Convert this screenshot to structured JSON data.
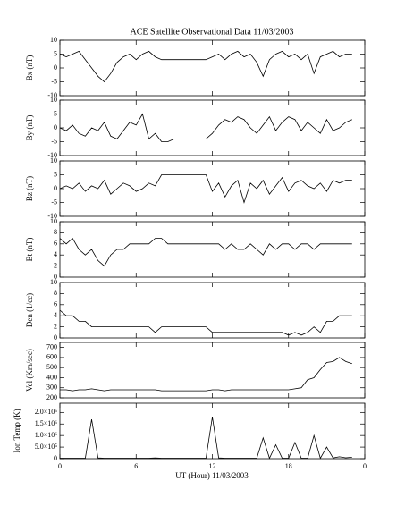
{
  "chart_data": [
    {
      "type": "line",
      "title": "ACE Satellite Observational Data   11/03/2003",
      "y_label": "Bx (nT)",
      "color": "#000000",
      "xlim": [
        0,
        24
      ],
      "ylim": [
        -10,
        10
      ],
      "yticks": [
        -10,
        -5,
        0,
        5,
        10
      ],
      "x": [
        0,
        0.5,
        1,
        1.5,
        2,
        2.5,
        3,
        3.5,
        4,
        4.5,
        5,
        5.5,
        6,
        6.5,
        7,
        7.5,
        8,
        8.5,
        9,
        9.5,
        10,
        10.5,
        11,
        11.5,
        12,
        12.5,
        13,
        13.5,
        14,
        14.5,
        15,
        15.5,
        16,
        16.5,
        17,
        17.5,
        18,
        18.5,
        19,
        19.5,
        20,
        20.5,
        21,
        21.5,
        22,
        22.5,
        23
      ],
      "values": [
        5,
        4,
        5,
        6,
        3,
        0,
        -3,
        -5,
        -2,
        2,
        4,
        5,
        3,
        5,
        6,
        4,
        3,
        3,
        3,
        3,
        3,
        3,
        3,
        3,
        4,
        5,
        3,
        5,
        6,
        4,
        5,
        2,
        -3,
        3,
        5,
        6,
        4,
        5,
        3,
        5,
        -2,
        4,
        5,
        6,
        4,
        5,
        5
      ]
    },
    {
      "type": "line",
      "y_label": "By (nT)",
      "color": "#000000",
      "xlim": [
        0,
        24
      ],
      "ylim": [
        -10,
        10
      ],
      "yticks": [
        -10,
        -5,
        0,
        5,
        10
      ],
      "x": [
        0,
        0.5,
        1,
        1.5,
        2,
        2.5,
        3,
        3.5,
        4,
        4.5,
        5,
        5.5,
        6,
        6.5,
        7,
        7.5,
        8,
        8.5,
        9,
        9.5,
        10,
        10.5,
        11,
        11.5,
        12,
        12.5,
        13,
        13.5,
        14,
        14.5,
        15,
        15.5,
        16,
        16.5,
        17,
        17.5,
        18,
        18.5,
        19,
        19.5,
        20,
        20.5,
        21,
        21.5,
        22,
        22.5,
        23
      ],
      "values": [
        0,
        -1,
        1,
        -2,
        -3,
        0,
        -1,
        2,
        -3,
        -4,
        -1,
        2,
        1,
        5,
        -4,
        -2,
        -5,
        -5,
        -4,
        -4,
        -4,
        -4,
        -4,
        -4,
        -2,
        1,
        3,
        2,
        4,
        3,
        0,
        -2,
        1,
        4,
        -1,
        2,
        4,
        3,
        -1,
        2,
        0,
        -2,
        3,
        -1,
        0,
        2,
        3
      ]
    },
    {
      "type": "line",
      "y_label": "Bz (nT)",
      "color": "#000000",
      "xlim": [
        0,
        24
      ],
      "ylim": [
        -10,
        10
      ],
      "yticks": [
        -10,
        -5,
        0,
        5,
        10
      ],
      "x": [
        0,
        0.5,
        1,
        1.5,
        2,
        2.5,
        3,
        3.5,
        4,
        4.5,
        5,
        5.5,
        6,
        6.5,
        7,
        7.5,
        8,
        8.5,
        9,
        9.5,
        10,
        10.5,
        11,
        11.5,
        12,
        12.5,
        13,
        13.5,
        14,
        14.5,
        15,
        15.5,
        16,
        16.5,
        17,
        17.5,
        18,
        18.5,
        19,
        19.5,
        20,
        20.5,
        21,
        21.5,
        22,
        22.5,
        23
      ],
      "values": [
        0,
        1,
        0,
        2,
        -1,
        1,
        0,
        3,
        -2,
        0,
        2,
        1,
        -1,
        0,
        2,
        1,
        5,
        5,
        5,
        5,
        5,
        5,
        5,
        5,
        -1,
        2,
        -3,
        1,
        3,
        -5,
        2,
        0,
        3,
        -2,
        1,
        4,
        -1,
        2,
        3,
        1,
        0,
        2,
        -1,
        3,
        2,
        3,
        3
      ]
    },
    {
      "type": "line",
      "y_label": "Bt (nT)",
      "color": "#000000",
      "xlim": [
        0,
        24
      ],
      "ylim": [
        0,
        10
      ],
      "yticks": [
        0,
        2,
        4,
        6,
        8,
        10
      ],
      "x": [
        0,
        0.5,
        1,
        1.5,
        2,
        2.5,
        3,
        3.5,
        4,
        4.5,
        5,
        5.5,
        6,
        6.5,
        7,
        7.5,
        8,
        8.5,
        9,
        9.5,
        10,
        10.5,
        11,
        11.5,
        12,
        12.5,
        13,
        13.5,
        14,
        14.5,
        15,
        15.5,
        16,
        16.5,
        17,
        17.5,
        18,
        18.5,
        19,
        19.5,
        20,
        20.5,
        21,
        21.5,
        22,
        22.5,
        23
      ],
      "values": [
        7,
        6,
        7,
        5,
        4,
        5,
        3,
        2,
        4,
        5,
        5,
        6,
        6,
        6,
        6,
        7,
        7,
        6,
        6,
        6,
        6,
        6,
        6,
        6,
        6,
        6,
        5,
        6,
        5,
        5,
        6,
        5,
        4,
        6,
        5,
        6,
        6,
        5,
        6,
        6,
        5,
        6,
        6,
        6,
        6,
        6,
        6
      ]
    },
    {
      "type": "line",
      "y_label": "Den (1/cc)",
      "color": "#000000",
      "xlim": [
        0,
        24
      ],
      "ylim": [
        0,
        10
      ],
      "yticks": [
        0,
        2,
        4,
        6,
        8,
        10
      ],
      "x": [
        0,
        0.5,
        1,
        1.5,
        2,
        2.5,
        3,
        3.5,
        4,
        4.5,
        5,
        5.5,
        6,
        6.5,
        7,
        7.5,
        8,
        8.5,
        9,
        9.5,
        10,
        10.5,
        11,
        11.5,
        12,
        12.5,
        13,
        13.5,
        14,
        14.5,
        15,
        15.5,
        16,
        16.5,
        17,
        17.5,
        18,
        18.5,
        19,
        19.5,
        20,
        20.5,
        21,
        21.5,
        22,
        22.5,
        23
      ],
      "values": [
        5,
        4,
        4,
        3,
        3,
        2,
        2,
        2,
        2,
        2,
        2,
        2,
        2,
        2,
        2,
        1,
        2,
        2,
        2,
        2,
        2,
        2,
        2,
        2,
        1,
        1,
        1,
        1,
        1,
        1,
        1,
        1,
        1,
        1,
        1,
        1,
        0.5,
        1,
        0.5,
        1,
        2,
        1,
        3,
        3,
        4,
        4,
        4
      ]
    },
    {
      "type": "line",
      "y_label": "Vel (Km/sec)",
      "color": "#000000",
      "xlim": [
        0,
        24
      ],
      "ylim": [
        200,
        750
      ],
      "yticks": [
        200,
        300,
        400,
        500,
        600,
        700
      ],
      "x": [
        0,
        0.5,
        1,
        1.5,
        2,
        2.5,
        3,
        3.5,
        4,
        4.5,
        5,
        5.5,
        6,
        6.5,
        7,
        7.5,
        8,
        8.5,
        9,
        9.5,
        10,
        10.5,
        11,
        11.5,
        12,
        12.5,
        13,
        13.5,
        14,
        14.5,
        15,
        15.5,
        16,
        16.5,
        17,
        17.5,
        18,
        18.5,
        19,
        19.5,
        20,
        20.5,
        21,
        21.5,
        22,
        22.5,
        23
      ],
      "values": [
        280,
        280,
        270,
        280,
        280,
        290,
        280,
        270,
        280,
        280,
        280,
        280,
        280,
        280,
        280,
        280,
        270,
        270,
        270,
        270,
        270,
        270,
        270,
        270,
        280,
        280,
        270,
        280,
        280,
        280,
        280,
        280,
        280,
        280,
        280,
        280,
        280,
        290,
        300,
        380,
        400,
        480,
        550,
        560,
        600,
        560,
        540
      ]
    },
    {
      "type": "line",
      "y_label": "Ion Temp (K)",
      "x_label": "UT (Hour)   11/03/2003",
      "color": "#000000",
      "xlim": [
        0,
        24
      ],
      "xticks": [
        0,
        6,
        12,
        18,
        {
          "value": 24,
          "label": "0"
        }
      ],
      "ylim": [
        0,
        2400000
      ],
      "yticks": [
        0,
        {
          "value": 500000,
          "label": "5.0×10⁵"
        },
        {
          "value": 1000000,
          "label": "1.0×10⁶"
        },
        {
          "value": 1500000,
          "label": "1.5×10⁶"
        },
        {
          "value": 2000000,
          "label": "2.0×10⁶"
        }
      ],
      "x": [
        0,
        0.5,
        1,
        1.5,
        2,
        2.5,
        3,
        3.5,
        4,
        4.5,
        5,
        5.5,
        6,
        6.5,
        7,
        7.5,
        8,
        8.5,
        9,
        9.5,
        10,
        10.5,
        11,
        11.5,
        12,
        12.5,
        13,
        13.5,
        14,
        14.5,
        15,
        15.5,
        16,
        16.5,
        17,
        17.5,
        18,
        18.5,
        19,
        19.5,
        20,
        20.5,
        21,
        21.5,
        22,
        22.5,
        23
      ],
      "values": [
        20000,
        20000,
        20000,
        20000,
        20000,
        1700000,
        30000,
        20000,
        20000,
        20000,
        20000,
        20000,
        20000,
        20000,
        20000,
        30000,
        20000,
        20000,
        20000,
        20000,
        20000,
        20000,
        20000,
        20000,
        1800000,
        30000,
        20000,
        20000,
        20000,
        20000,
        20000,
        20000,
        900000,
        20000,
        600000,
        20000,
        20000,
        700000,
        20000,
        20000,
        1000000,
        20000,
        500000,
        30000,
        80000,
        40000,
        60000
      ]
    }
  ]
}
